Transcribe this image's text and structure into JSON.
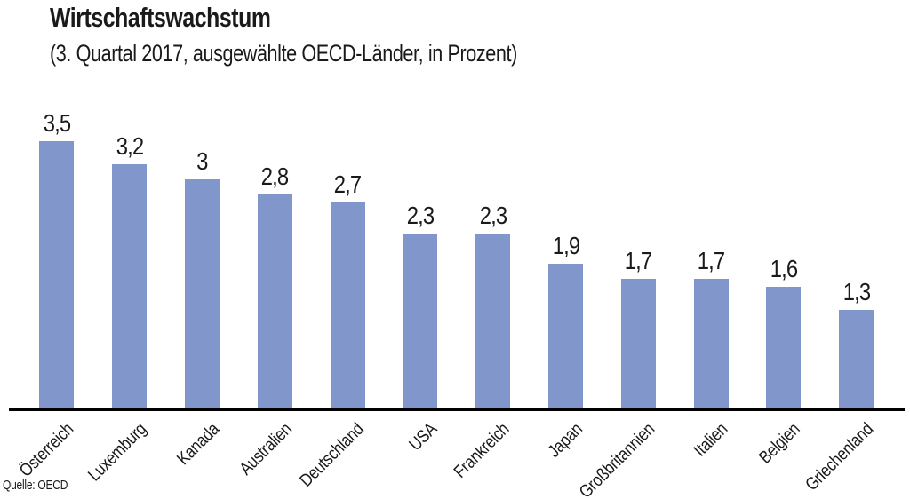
{
  "colors": {
    "bar": "#8197cb",
    "axis": "#000000",
    "text": "#1a1a1a",
    "background": "#ffffff"
  },
  "chart_data": {
    "type": "bar",
    "title": "Wirtschaftswachstum",
    "subtitle": "(3. Quartal 2017, ausgewählte OECD-Länder, in Prozent)",
    "source": "Quelle: OECD",
    "categories": [
      "Österreich",
      "Luxemburg",
      "Kanada",
      "Australien",
      "Deutschland",
      "USA",
      "Frankreich",
      "Japan",
      "Großbritannien",
      "Italien",
      "Belgien",
      "Griechenland"
    ],
    "values": [
      3.5,
      3.2,
      3.0,
      2.8,
      2.7,
      2.3,
      2.3,
      1.9,
      1.7,
      1.7,
      1.6,
      1.3
    ],
    "value_labels": [
      "3,5",
      "3,2",
      "3",
      "2,8",
      "2,7",
      "2,3",
      "2,3",
      "1,9",
      "1,7",
      "1,7",
      "1,6",
      "1,3"
    ],
    "xlabel": "",
    "ylabel": "",
    "ylim": [
      0,
      3.95
    ],
    "grid": false,
    "legend": null,
    "value_labels_position": "above-bars",
    "category_labels_rotation_deg": -45
  }
}
